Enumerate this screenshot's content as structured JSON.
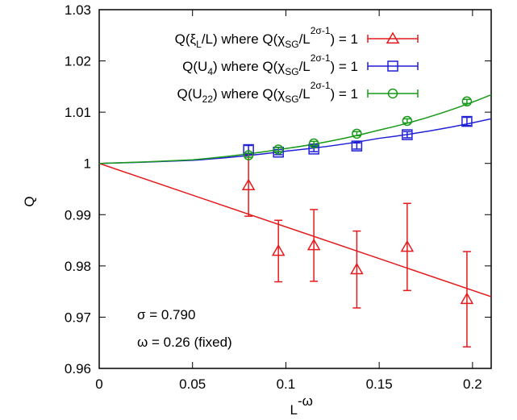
{
  "chart_data": {
    "type": "scatter",
    "xlabel": "L",
    "xlabel_sup": "-ω",
    "ylabel": "Q",
    "xlim": [
      0,
      0.21
    ],
    "ylim": [
      0.96,
      1.03
    ],
    "grid": false,
    "legend_position": "top-right",
    "x_ticks": [
      "0",
      "0.05",
      "0.1",
      "0.15",
      "0.2"
    ],
    "y_ticks": [
      "0.96",
      "0.97",
      "0.98",
      "0.99",
      "1",
      "1.01",
      "1.02",
      "1.03"
    ],
    "annotations": [
      "σ = 0.790",
      "ω = 0.26 (fixed)"
    ],
    "series": [
      {
        "legend": {
          "pre": "Q(ξ",
          "sub1": "L",
          "mid": "/L) where Q(χ",
          "sub2": "SG",
          "mid2": "/L",
          "sup": "2σ-1",
          "post": ") = 1"
        },
        "color": "#e41a1c",
        "marker": "triangle",
        "x": [
          0.08,
          0.096,
          0.115,
          0.138,
          0.165,
          0.197
        ],
        "y": [
          0.9957,
          0.9829,
          0.984,
          0.9793,
          0.9837,
          0.9735
        ],
        "yerr": [
          0.006,
          0.006,
          0.007,
          0.0075,
          0.0085,
          0.0093
        ],
        "fit": {
          "type": "linear",
          "points": [
            [
              0,
              1.0
            ],
            [
              0.21,
              0.974
            ]
          ]
        }
      },
      {
        "legend": {
          "pre": "Q(U",
          "sub1": "4",
          "mid": ") where Q(χ",
          "sub2": "SG",
          "mid2": "/L",
          "sup": "2σ-1",
          "post": ") = 1"
        },
        "color": "#1f1fd6",
        "marker": "square",
        "x": [
          0.08,
          0.096,
          0.115,
          0.138,
          0.165,
          0.197
        ],
        "y": [
          1.0027,
          1.0022,
          1.0028,
          1.0034,
          1.0056,
          1.0082
        ],
        "yerr": [
          0.0008,
          0.0005,
          0.0005,
          0.0006,
          0.0006,
          0.0008
        ],
        "fit": {
          "type": "curve",
          "points": [
            [
              0,
              1.0
            ],
            [
              0.05,
              1.0006
            ],
            [
              0.1,
              1.0024
            ],
            [
              0.15,
              1.0049
            ],
            [
              0.21,
              1.0087
            ]
          ]
        }
      },
      {
        "legend": {
          "pre": "Q(U",
          "sub1": "22",
          "mid": ") where Q(χ",
          "sub2": "SG",
          "mid2": "/L",
          "sup": "2σ-1",
          "post": ") = 1"
        },
        "color": "#1a9a1a",
        "marker": "circle",
        "x": [
          0.08,
          0.096,
          0.115,
          0.138,
          0.165,
          0.197
        ],
        "y": [
          1.0016,
          1.0027,
          1.0039,
          1.0058,
          1.0083,
          1.0121
        ],
        "yerr": [
          0.0004,
          0.0004,
          0.0004,
          0.0004,
          0.0004,
          0.0004
        ],
        "fit": {
          "type": "curve",
          "points": [
            [
              0,
              1.0
            ],
            [
              0.05,
              1.0007
            ],
            [
              0.1,
              1.0029
            ],
            [
              0.15,
              1.0065
            ],
            [
              0.21,
              1.0134
            ]
          ]
        }
      }
    ]
  }
}
